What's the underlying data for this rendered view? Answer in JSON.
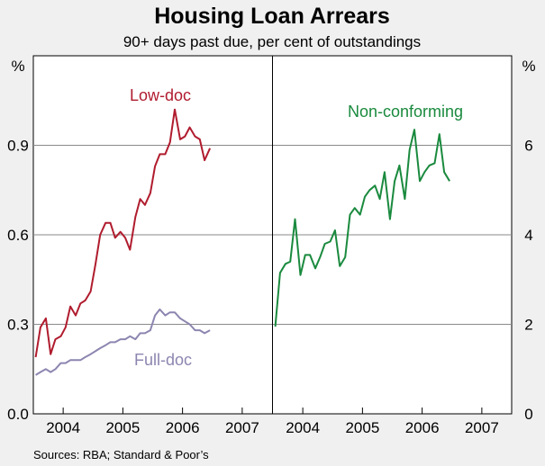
{
  "chart_data": {
    "type": "line",
    "title": "Housing Loan Arrears",
    "subtitle": "90+ days past due, per cent of outstandings",
    "source": "Sources: RBA; Standard & Poor’s",
    "panels": [
      {
        "unit_label": "%",
        "ylim": [
          0,
          1.2
        ],
        "yticks": [
          "0.0",
          "0.3",
          "0.6",
          "0.9"
        ],
        "ytick_values": [
          0,
          0.3,
          0.6,
          0.9
        ],
        "xlim": [
          2003.5,
          2007.5
        ],
        "xtick_labels": [
          "2004",
          "2005",
          "2006",
          "2007"
        ],
        "xtick_centers": [
          2004,
          2005,
          2006,
          2007
        ],
        "grid": true,
        "series": [
          {
            "name": "Low-doc",
            "color": "#b01c2e",
            "points": [
              [
                2003.54,
                0.19
              ],
              [
                2003.62,
                0.29
              ],
              [
                2003.71,
                0.32
              ],
              [
                2003.79,
                0.2
              ],
              [
                2003.87,
                0.25
              ],
              [
                2003.96,
                0.26
              ],
              [
                2004.04,
                0.29
              ],
              [
                2004.12,
                0.36
              ],
              [
                2004.21,
                0.33
              ],
              [
                2004.29,
                0.37
              ],
              [
                2004.37,
                0.38
              ],
              [
                2004.46,
                0.41
              ],
              [
                2004.54,
                0.5
              ],
              [
                2004.62,
                0.6
              ],
              [
                2004.71,
                0.64
              ],
              [
                2004.79,
                0.64
              ],
              [
                2004.87,
                0.59
              ],
              [
                2004.96,
                0.61
              ],
              [
                2005.04,
                0.59
              ],
              [
                2005.12,
                0.55
              ],
              [
                2005.21,
                0.66
              ],
              [
                2005.29,
                0.72
              ],
              [
                2005.37,
                0.7
              ],
              [
                2005.46,
                0.74
              ],
              [
                2005.54,
                0.83
              ],
              [
                2005.62,
                0.87
              ],
              [
                2005.71,
                0.87
              ],
              [
                2005.79,
                0.91
              ],
              [
                2005.87,
                1.02
              ],
              [
                2005.96,
                0.92
              ],
              [
                2006.04,
                0.93
              ],
              [
                2006.12,
                0.96
              ],
              [
                2006.21,
                0.93
              ],
              [
                2006.29,
                0.92
              ],
              [
                2006.37,
                0.85
              ],
              [
                2006.46,
                0.89
              ]
            ]
          },
          {
            "name": "Full-doc",
            "color": "#8c86b0",
            "points": [
              [
                2003.54,
                0.13
              ],
              [
                2003.62,
                0.14
              ],
              [
                2003.71,
                0.15
              ],
              [
                2003.79,
                0.14
              ],
              [
                2003.87,
                0.15
              ],
              [
                2003.96,
                0.17
              ],
              [
                2004.04,
                0.17
              ],
              [
                2004.12,
                0.18
              ],
              [
                2004.21,
                0.18
              ],
              [
                2004.29,
                0.18
              ],
              [
                2004.37,
                0.19
              ],
              [
                2004.46,
                0.2
              ],
              [
                2004.54,
                0.21
              ],
              [
                2004.62,
                0.22
              ],
              [
                2004.71,
                0.23
              ],
              [
                2004.79,
                0.24
              ],
              [
                2004.87,
                0.24
              ],
              [
                2004.96,
                0.25
              ],
              [
                2005.04,
                0.25
              ],
              [
                2005.12,
                0.26
              ],
              [
                2005.21,
                0.25
              ],
              [
                2005.29,
                0.27
              ],
              [
                2005.37,
                0.27
              ],
              [
                2005.46,
                0.28
              ],
              [
                2005.54,
                0.33
              ],
              [
                2005.62,
                0.35
              ],
              [
                2005.71,
                0.33
              ],
              [
                2005.79,
                0.34
              ],
              [
                2005.87,
                0.34
              ],
              [
                2005.96,
                0.32
              ],
              [
                2006.04,
                0.31
              ],
              [
                2006.12,
                0.3
              ],
              [
                2006.21,
                0.28
              ],
              [
                2006.29,
                0.28
              ],
              [
                2006.37,
                0.27
              ],
              [
                2006.46,
                0.28
              ]
            ]
          }
        ]
      },
      {
        "unit_label": "%",
        "ylim": [
          0,
          8
        ],
        "yticks": [
          "0",
          "2",
          "4",
          "6"
        ],
        "ytick_values": [
          0,
          2,
          4,
          6
        ],
        "xlim": [
          2003.5,
          2007.5
        ],
        "xtick_labels": [
          "2004",
          "2005",
          "2006",
          "2007"
        ],
        "xtick_centers": [
          2004,
          2005,
          2006,
          2007
        ],
        "grid": true,
        "series": [
          {
            "name": "Non-conforming",
            "color": "#1a8a3e",
            "points": [
              [
                2003.54,
                1.95
              ],
              [
                2003.62,
                3.15
              ],
              [
                2003.71,
                3.35
              ],
              [
                2003.79,
                3.4
              ],
              [
                2003.87,
                4.35
              ],
              [
                2003.96,
                3.1
              ],
              [
                2004.04,
                3.55
              ],
              [
                2004.12,
                3.55
              ],
              [
                2004.21,
                3.25
              ],
              [
                2004.29,
                3.5
              ],
              [
                2004.37,
                3.8
              ],
              [
                2004.46,
                3.85
              ],
              [
                2004.54,
                4.1
              ],
              [
                2004.62,
                3.3
              ],
              [
                2004.71,
                3.5
              ],
              [
                2004.79,
                4.45
              ],
              [
                2004.87,
                4.6
              ],
              [
                2004.96,
                4.45
              ],
              [
                2005.04,
                4.85
              ],
              [
                2005.12,
                5.0
              ],
              [
                2005.21,
                5.1
              ],
              [
                2005.29,
                4.8
              ],
              [
                2005.37,
                5.4
              ],
              [
                2005.46,
                4.35
              ],
              [
                2005.54,
                5.2
              ],
              [
                2005.62,
                5.55
              ],
              [
                2005.71,
                4.8
              ],
              [
                2005.79,
                5.9
              ],
              [
                2005.87,
                6.35
              ],
              [
                2005.96,
                5.2
              ],
              [
                2006.04,
                5.4
              ],
              [
                2006.12,
                5.55
              ],
              [
                2006.21,
                5.6
              ],
              [
                2006.29,
                6.25
              ],
              [
                2006.37,
                5.4
              ],
              [
                2006.46,
                5.2
              ]
            ]
          }
        ]
      }
    ]
  }
}
